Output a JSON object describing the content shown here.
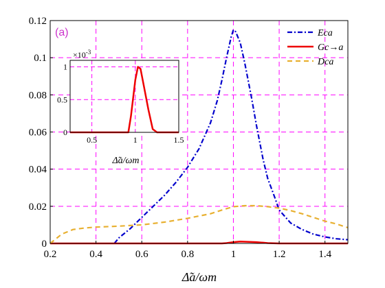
{
  "chart_data": {
    "type": "line",
    "panel_label": "(a)",
    "xlabel": "Δ̃a/ωm",
    "ylabel": "",
    "xlim": [
      0.2,
      1.5
    ],
    "ylim": [
      0,
      0.12
    ],
    "xticks": [
      "0.2",
      "0.4",
      "0.6",
      "0.8",
      "1",
      "1.2",
      "1.4"
    ],
    "yticks": [
      "0",
      "0.02",
      "0.04",
      "0.06",
      "0.08",
      "0.1",
      "0.12"
    ],
    "grid": true,
    "grid_style": "dashed",
    "grid_color": "#ff00ff",
    "legend_position": "top-right",
    "series": [
      {
        "name": "Eca",
        "color": "#0000cc",
        "style": "dash-dot",
        "x": [
          0.48,
          0.5,
          0.55,
          0.6,
          0.65,
          0.7,
          0.75,
          0.8,
          0.85,
          0.9,
          0.93,
          0.95,
          0.97,
          0.99,
          1.0,
          1.01,
          1.03,
          1.05,
          1.08,
          1.1,
          1.13,
          1.15,
          1.18,
          1.2,
          1.25,
          1.3,
          1.35,
          1.4,
          1.45,
          1.5
        ],
        "y": [
          0.0,
          0.003,
          0.008,
          0.014,
          0.02,
          0.026,
          0.033,
          0.041,
          0.051,
          0.065,
          0.077,
          0.088,
          0.1,
          0.111,
          0.115,
          0.114,
          0.108,
          0.097,
          0.078,
          0.064,
          0.045,
          0.035,
          0.025,
          0.018,
          0.011,
          0.0075,
          0.005,
          0.0035,
          0.0025,
          0.002
        ]
      },
      {
        "name": "Gc→a",
        "color": "#ee0000",
        "style": "solid",
        "x": [
          0.2,
          0.3,
          0.4,
          0.5,
          0.6,
          0.7,
          0.8,
          0.9,
          0.95,
          0.97,
          1.0,
          1.03,
          1.06,
          1.1,
          1.13,
          1.15,
          1.2,
          1.3,
          1.4,
          1.5
        ],
        "y": [
          0,
          0,
          0,
          0,
          0,
          0,
          0,
          0,
          0,
          0.0002,
          0.0007,
          0.001,
          0.0009,
          0.0007,
          0.0004,
          0.0002,
          0,
          0,
          0,
          0
        ]
      },
      {
        "name": "Dca",
        "color": "#e8b030",
        "style": "dashed",
        "x": [
          0.2,
          0.22,
          0.25,
          0.3,
          0.35,
          0.4,
          0.5,
          0.6,
          0.7,
          0.8,
          0.9,
          0.95,
          1.0,
          1.05,
          1.1,
          1.15,
          1.2,
          1.25,
          1.3,
          1.35,
          1.4,
          1.45,
          1.5
        ],
        "y": [
          0.0,
          0.002,
          0.005,
          0.0075,
          0.0083,
          0.0088,
          0.0093,
          0.01,
          0.0115,
          0.0135,
          0.016,
          0.018,
          0.0198,
          0.0203,
          0.0203,
          0.0198,
          0.019,
          0.0177,
          0.016,
          0.014,
          0.012,
          0.0105,
          0.0085
        ]
      }
    ],
    "inset": {
      "type": "line",
      "xlabel": "Δ̃a/ωm",
      "xlim": [
        0.25,
        1.5
      ],
      "ylim": [
        0,
        1.1
      ],
      "xticks": [
        "0.5",
        "1",
        "1.5"
      ],
      "yticks": [
        "0",
        "0.5",
        "1"
      ],
      "exponent_label": "×10",
      "exponent": "-3",
      "series": [
        {
          "name": "Gc→a",
          "color": "#ee0000",
          "x": [
            0.25,
            0.5,
            0.8,
            0.92,
            0.95,
            1.0,
            1.03,
            1.06,
            1.1,
            1.15,
            1.2,
            1.25,
            1.5
          ],
          "y": [
            0,
            0,
            0,
            0,
            0.25,
            0.8,
            1.0,
            0.97,
            0.7,
            0.35,
            0.05,
            0,
            0
          ]
        }
      ]
    }
  }
}
